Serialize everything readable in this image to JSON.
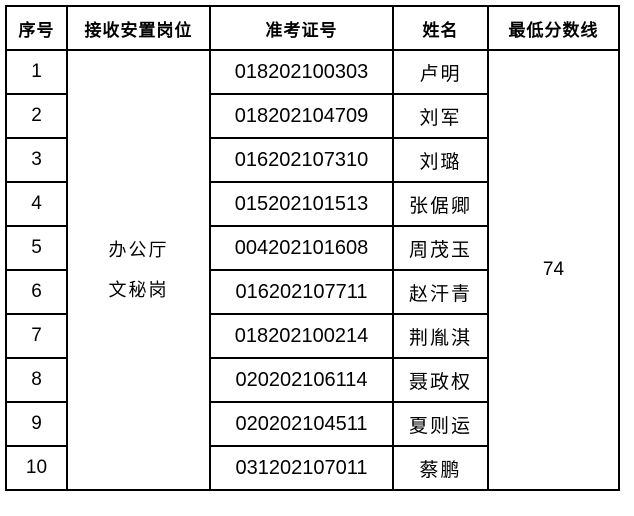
{
  "page": {
    "background_color": "#ffffff",
    "border_color": "#000000",
    "text_color": "#000000"
  },
  "table": {
    "headers": [
      "序号",
      "接收安置岗位",
      "准考证号",
      "姓名",
      "最低分数线"
    ],
    "position_cell": {
      "line1": "办公厅",
      "line2": "文秘岗"
    },
    "min_score": "74",
    "rows": [
      {
        "no": "1",
        "ticket": "018202100303",
        "name": "卢明"
      },
      {
        "no": "2",
        "ticket": "018202104709",
        "name": "刘军"
      },
      {
        "no": "3",
        "ticket": "016202107310",
        "name": "刘璐"
      },
      {
        "no": "4",
        "ticket": "015202101513",
        "name": "张倨卿"
      },
      {
        "no": "5",
        "ticket": "004202101608",
        "name": "周茂玉"
      },
      {
        "no": "6",
        "ticket": "016202107711",
        "name": "赵汗青"
      },
      {
        "no": "7",
        "ticket": "018202100214",
        "name": "荆胤淇"
      },
      {
        "no": "8",
        "ticket": "020202106114",
        "name": "聂政权"
      },
      {
        "no": "9",
        "ticket": "020202104511",
        "name": "夏则运"
      },
      {
        "no": "10",
        "ticket": "031202107011",
        "name": "蔡鹏"
      }
    ]
  }
}
